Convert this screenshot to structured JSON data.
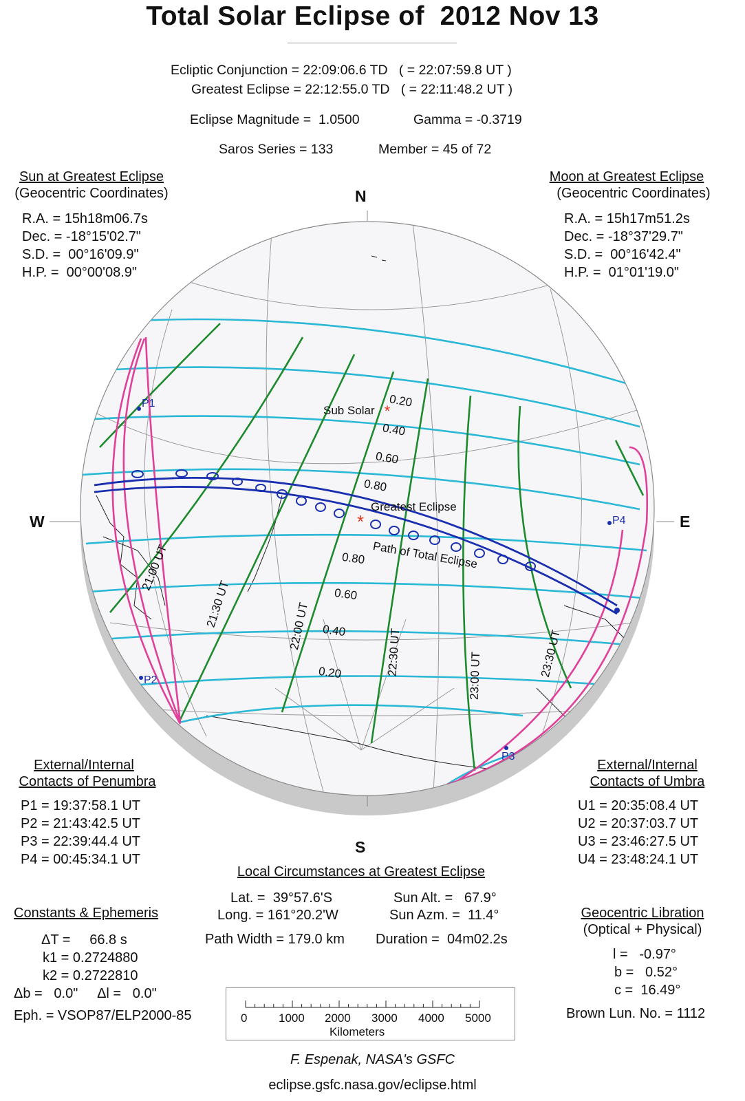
{
  "title": "Total Solar Eclipse of  2012 Nov 13",
  "header": {
    "conjunction_line": "Ecliptic Conjunction = 22:09:06.6 TD   ( = 22:07:59.8 UT )",
    "greatest_line": "Greatest Eclipse = 22:12:55.0 TD   ( = 22:11:48.2 UT )",
    "magnitude": "Eclipse Magnitude =  1.0500",
    "gamma": "Gamma = -0.3719",
    "saros": "Saros Series = 133",
    "member": "Member = 45 of 72"
  },
  "sun": {
    "heading": "Sun at Greatest Eclipse",
    "subheading": "(Geocentric Coordinates)",
    "lines": [
      "R.A. = 15h18m06.7s",
      "Dec. = -18°15'02.7\"",
      "S.D. =  00°16'09.9\"",
      "H.P. =  00°00'08.9\""
    ]
  },
  "moon": {
    "heading": "Moon at Greatest Eclipse",
    "subheading": "(Geocentric Coordinates)",
    "lines": [
      "R.A. = 15h17m51.2s",
      "Dec. = -18°37'29.7\"",
      "S.D. =  00°16'42.4\"",
      "H.P. =  01°01'19.0\""
    ]
  },
  "compass": {
    "n": "N",
    "s": "S",
    "w": "W",
    "e": "E"
  },
  "map_labels": {
    "sub_solar": "Sub Solar",
    "greatest_eclipse": "Greatest Eclipse",
    "path": "Path of Total Eclipse",
    "p1": "P1",
    "p2": "P2",
    "p3": "P3",
    "p4": "P4",
    "mag_upper": [
      "0.20",
      "0.40",
      "0.60",
      "0.80"
    ],
    "mag_lower": [
      "0.80",
      "0.60",
      "0.40",
      "0.20"
    ],
    "times": [
      "21:00 UT",
      "21:30 UT",
      "22:00 UT",
      "22:30 UT",
      "23:00 UT",
      "23:30 UT"
    ]
  },
  "colors": {
    "magnitude_lines": "#2bb8d6",
    "time_lines": "#1e8a2e",
    "penumbra_limits": "#e0409a",
    "umbral_path": "#1a2fb0",
    "sub_solar_marker": "#e03a1a",
    "globe_shadow": "#c9c9c9"
  },
  "penumbra": {
    "heading1": "External/Internal",
    "heading2": "Contacts of Penumbra",
    "lines": [
      "P1 = 19:37:58.1 UT",
      "P2 = 21:43:42.5 UT",
      "P3 = 22:39:44.4 UT",
      "P4 = 00:45:34.1 UT"
    ]
  },
  "umbra": {
    "heading1": "External/Internal",
    "heading2": "Contacts of Umbra",
    "lines": [
      "U1 = 20:35:08.4 UT",
      "U2 = 20:37:03.7 UT",
      "U3 = 23:46:27.5 UT",
      "U4 = 23:48:24.1 UT"
    ]
  },
  "local": {
    "heading": "Local Circumstances at Greatest Eclipse",
    "lat": "Lat. =  39°57.6'S",
    "long": "Long. = 161°20.2'W",
    "sun_alt": "Sun Alt. =   67.9°",
    "sun_azm": "Sun Azm. =  11.4°",
    "path_width": "Path Width = 179.0 km",
    "duration": "Duration =  04m02.2s"
  },
  "constants": {
    "heading": "Constants & Ephemeris",
    "dt": "ΔT =     66.8 s",
    "k1": "k1 = 0.2724880",
    "k2": "k2 = 0.2722810",
    "db_dl": "Δb =   0.0\"     Δl =   0.0\"",
    "eph": "Eph. = VSOP87/ELP2000-85"
  },
  "libration": {
    "heading": "Geocentric Libration",
    "subheading": "(Optical + Physical)",
    "l": "l =   -0.97°",
    "b": "b =   0.52°",
    "c": "c =  16.49°",
    "brown": "Brown Lun. No. = 1112"
  },
  "scale": {
    "ticks": [
      "0",
      "1000",
      "2000",
      "3000",
      "4000",
      "5000"
    ],
    "unit": "Kilometers"
  },
  "credit": "F. Espenak, NASA's GSFC",
  "url": "eclipse.gsfc.nasa.gov/eclipse.html"
}
